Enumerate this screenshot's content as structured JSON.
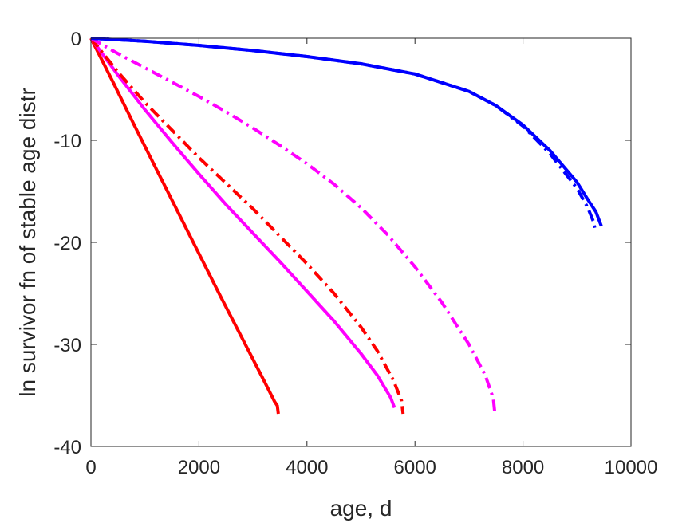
{
  "chart_data": {
    "type": "line",
    "title": "",
    "xlabel": "age, d",
    "ylabel": "ln survivor fn of stable age distr",
    "xlim": [
      0,
      10000
    ],
    "ylim": [
      -40,
      0
    ],
    "xticks": [
      0,
      2000,
      4000,
      6000,
      8000,
      10000
    ],
    "yticks": [
      0,
      -10,
      -20,
      -30,
      -40
    ],
    "xtick_labels": [
      "0",
      "2000",
      "4000",
      "6000",
      "8000",
      "10000"
    ],
    "ytick_labels": [
      "0",
      "-10",
      "-20",
      "-30",
      "-40"
    ],
    "grid": false,
    "legend": "none",
    "series": [
      {
        "color": "#ff0000",
        "dash": "solid",
        "x": [
          0,
          400,
          800,
          1200,
          1600,
          2000,
          2400,
          2800,
          3200,
          3400,
          3450,
          3470
        ],
        "y": [
          0,
          -4.2,
          -8.5,
          -12.7,
          -16.9,
          -21.1,
          -25.3,
          -29.4,
          -33.5,
          -35.6,
          -36.0,
          -36.8
        ]
      },
      {
        "color": "#ff00ff",
        "dash": "solid",
        "x": [
          0,
          500,
          1000,
          1500,
          2000,
          2500,
          3000,
          3500,
          4000,
          4500,
          5000,
          5300,
          5550,
          5620
        ],
        "y": [
          0,
          -3.6,
          -7.0,
          -10.2,
          -13.3,
          -16.3,
          -19.1,
          -21.9,
          -24.8,
          -27.7,
          -30.9,
          -33.0,
          -35.2,
          -36.2
        ]
      },
      {
        "color": "#ff0000",
        "dash": "dashdot",
        "x": [
          0,
          500,
          1000,
          1500,
          2000,
          2500,
          3000,
          3500,
          4000,
          4500,
          5000,
          5300,
          5600,
          5750,
          5780
        ],
        "y": [
          0,
          -3.3,
          -6.3,
          -9.0,
          -11.7,
          -14.2,
          -16.7,
          -19.4,
          -22.1,
          -25.0,
          -28.3,
          -30.6,
          -33.5,
          -35.5,
          -36.8
        ]
      },
      {
        "color": "#ff00ff",
        "dash": "dashdot",
        "x": [
          0,
          500,
          1000,
          1500,
          2000,
          2500,
          3000,
          3500,
          4000,
          4500,
          5000,
          5500,
          6000,
          6500,
          7000,
          7300,
          7450,
          7480
        ],
        "y": [
          0,
          -1.5,
          -2.9,
          -4.3,
          -5.7,
          -7.2,
          -8.8,
          -10.5,
          -12.3,
          -14.3,
          -16.6,
          -19.3,
          -22.4,
          -25.9,
          -30.0,
          -33.0,
          -35.3,
          -36.8
        ]
      },
      {
        "color": "#0000ff",
        "dash": "solid",
        "x": [
          0,
          1000,
          2000,
          3000,
          4000,
          5000,
          6000,
          7000,
          7500,
          8000,
          8500,
          9000,
          9200,
          9350,
          9450
        ],
        "y": [
          0,
          -0.3,
          -0.7,
          -1.2,
          -1.8,
          -2.5,
          -3.5,
          -5.2,
          -6.6,
          -8.5,
          -11.0,
          -14.1,
          -15.8,
          -17.0,
          -18.4
        ]
      },
      {
        "color": "#0000ff",
        "dash": "dashdot",
        "x": [
          0,
          1000,
          2000,
          3000,
          4000,
          5000,
          6000,
          7000,
          7500,
          8000,
          8500,
          9000,
          9200,
          9300,
          9330
        ],
        "y": [
          0,
          -0.3,
          -0.7,
          -1.2,
          -1.8,
          -2.5,
          -3.5,
          -5.2,
          -6.6,
          -8.6,
          -11.3,
          -14.7,
          -16.6,
          -17.9,
          -18.6
        ]
      }
    ]
  }
}
